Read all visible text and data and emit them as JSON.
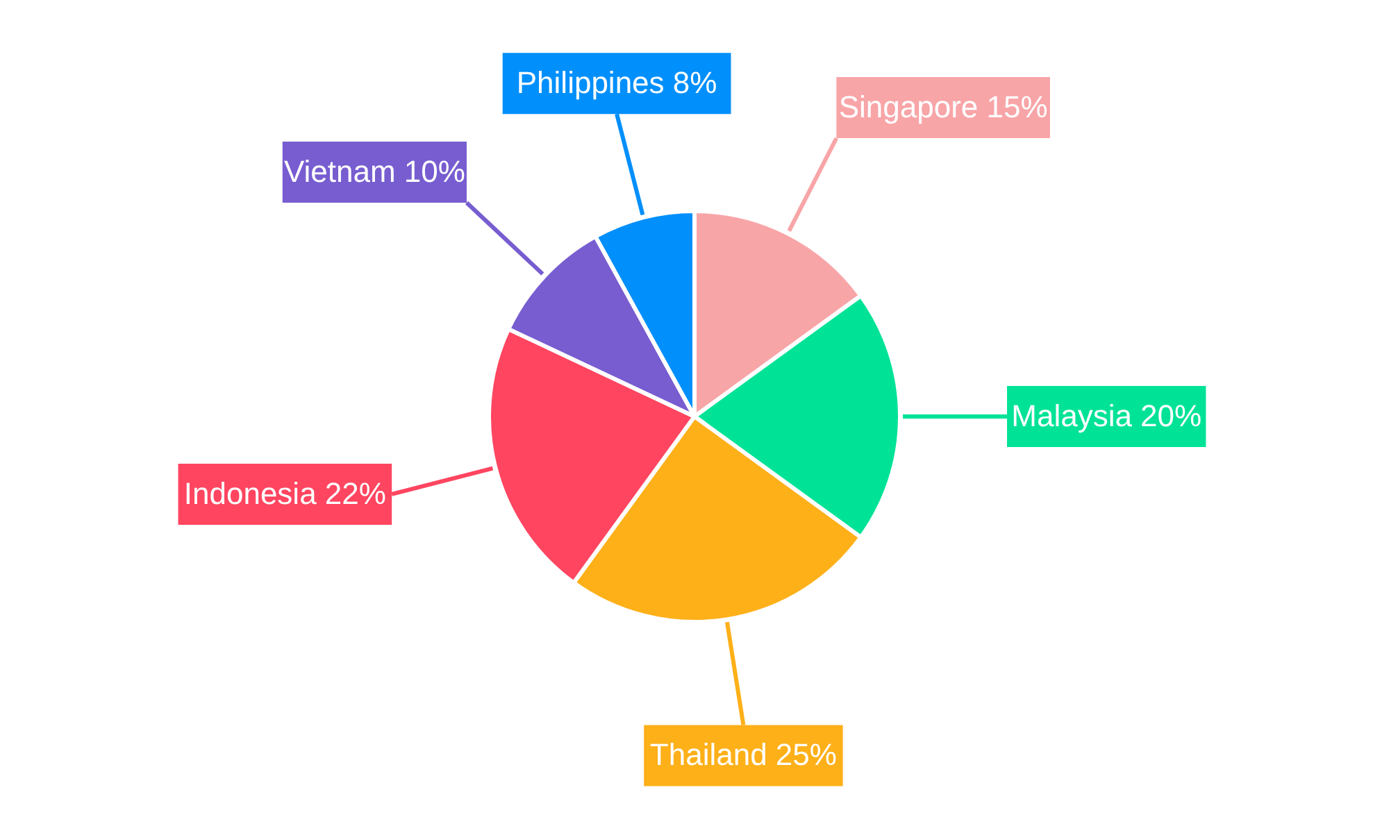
{
  "chart_data": {
    "type": "pie",
    "categories": [
      "Singapore",
      "Malaysia",
      "Thailand",
      "Indonesia",
      "Vietnam",
      "Philippines"
    ],
    "values": [
      15,
      20,
      25,
      22,
      10,
      8
    ],
    "value_labels": [
      "15%",
      "20%",
      "25%",
      "22%",
      "10%",
      "8%"
    ],
    "colors": [
      "#f8a5a8",
      "#00e396",
      "#feb019",
      "#ff4560",
      "#775dd0",
      "#008ffb"
    ]
  }
}
